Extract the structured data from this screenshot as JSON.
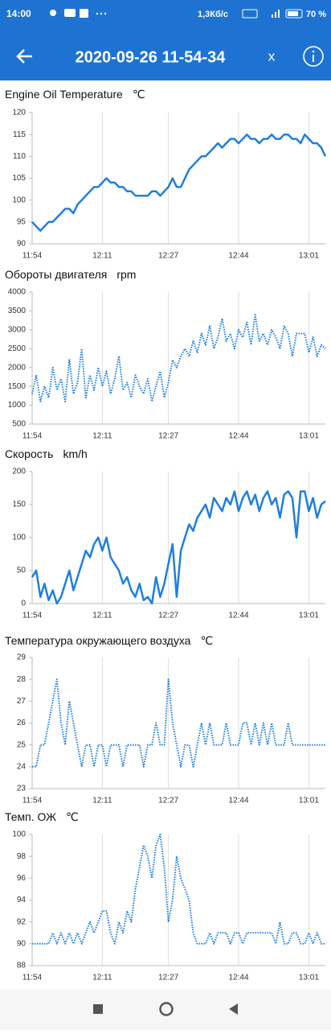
{
  "status_bar": {
    "time": "14:00",
    "speed": "1,3Кб/с",
    "battery": "70 %"
  },
  "header": {
    "title": "2020-09-26 11-54-34",
    "close": "x"
  },
  "chart_data": [
    {
      "type": "line",
      "title": "Engine Oil Temperature",
      "unit": "℃",
      "color": "#1e7fe0",
      "line_style": "solid",
      "x": [
        "11:54",
        "11:55",
        "11:56",
        "11:57",
        "11:58",
        "11:59",
        "12:00",
        "12:01",
        "12:02",
        "12:03",
        "12:04",
        "12:05",
        "12:06",
        "12:07",
        "12:08",
        "12:09",
        "12:10",
        "12:11",
        "12:12",
        "12:13",
        "12:14",
        "12:15",
        "12:16",
        "12:17",
        "12:18",
        "12:19",
        "12:20",
        "12:21",
        "12:22",
        "12:23",
        "12:24",
        "12:25",
        "12:26",
        "12:27",
        "12:28",
        "12:29",
        "12:30",
        "12:31",
        "12:32",
        "12:33",
        "12:34",
        "12:35",
        "12:36",
        "12:37",
        "12:38",
        "12:39",
        "12:40",
        "12:41",
        "12:42",
        "12:43",
        "12:44",
        "12:45",
        "12:46",
        "12:47",
        "12:48",
        "12:49",
        "12:50",
        "12:51",
        "12:52",
        "12:53",
        "12:54",
        "12:55",
        "12:56",
        "12:57",
        "12:58",
        "12:59",
        "13:00",
        "13:01",
        "13:02",
        "13:03",
        "13:04",
        "13:05"
      ],
      "values": [
        95,
        94,
        93,
        94,
        95,
        95,
        96,
        97,
        98,
        98,
        97,
        99,
        100,
        101,
        102,
        103,
        103,
        104,
        105,
        104,
        104,
        103,
        103,
        102,
        102,
        101,
        101,
        101,
        101,
        102,
        102,
        101,
        102,
        103,
        105,
        103,
        103,
        105,
        107,
        108,
        109,
        110,
        110,
        111,
        112,
        113,
        112,
        113,
        114,
        114,
        113,
        114,
        115,
        114,
        114,
        113,
        114,
        114,
        115,
        114,
        114,
        115,
        115,
        114,
        114,
        113,
        115,
        114,
        113,
        113,
        112,
        110
      ],
      "xlim": [
        "11:54",
        "13:05"
      ],
      "xticks": [
        "11:54",
        "12:11",
        "12:27",
        "12:44",
        "13:01"
      ],
      "ylim": [
        90,
        120
      ],
      "yticks": [
        90,
        95,
        100,
        105,
        110,
        115,
        120
      ]
    },
    {
      "type": "line",
      "title": "Обороты двигателя",
      "unit": "rpm",
      "color": "#1e7fe0",
      "line_style": "dotted",
      "x": [
        "11:54",
        "11:55",
        "11:56",
        "11:57",
        "11:58",
        "11:59",
        "12:00",
        "12:01",
        "12:02",
        "12:03",
        "12:04",
        "12:05",
        "12:06",
        "12:07",
        "12:08",
        "12:09",
        "12:10",
        "12:11",
        "12:12",
        "12:13",
        "12:14",
        "12:15",
        "12:16",
        "12:17",
        "12:18",
        "12:19",
        "12:20",
        "12:21",
        "12:22",
        "12:23",
        "12:24",
        "12:25",
        "12:26",
        "12:27",
        "12:28",
        "12:29",
        "12:30",
        "12:31",
        "12:32",
        "12:33",
        "12:34",
        "12:35",
        "12:36",
        "12:37",
        "12:38",
        "12:39",
        "12:40",
        "12:41",
        "12:42",
        "12:43",
        "12:44",
        "12:45",
        "12:46",
        "12:47",
        "12:48",
        "12:49",
        "12:50",
        "12:51",
        "12:52",
        "12:53",
        "12:54",
        "12:55",
        "12:56",
        "12:57",
        "12:58",
        "12:59",
        "13:00",
        "13:01",
        "13:02",
        "13:03",
        "13:04",
        "13:05"
      ],
      "values": [
        1300,
        1800,
        1100,
        1500,
        1200,
        2000,
        1400,
        1700,
        1100,
        2200,
        1300,
        1600,
        2500,
        1200,
        1800,
        1400,
        2000,
        1500,
        1900,
        1300,
        1700,
        2300,
        1400,
        1600,
        1200,
        1800,
        1500,
        1300,
        1700,
        1100,
        1500,
        1900,
        1200,
        1600,
        2200,
        2000,
        2300,
        2500,
        2300,
        2700,
        2400,
        2900,
        2600,
        3100,
        2500,
        2800,
        3300,
        2700,
        2900,
        2500,
        3000,
        2800,
        3200,
        2600,
        3400,
        2700,
        2900,
        2600,
        3000,
        2800,
        2500,
        3100,
        2900,
        2300,
        2900,
        2900,
        2900,
        2400,
        2800,
        2300,
        2600,
        2500
      ],
      "xlim": [
        "11:54",
        "13:05"
      ],
      "xticks": [
        "11:54",
        "12:11",
        "12:27",
        "12:44",
        "13:01"
      ],
      "ylim": [
        500,
        4000
      ],
      "yticks": [
        500,
        1000,
        1500,
        2000,
        2500,
        3000,
        3500,
        4000
      ]
    },
    {
      "type": "line",
      "title": "Скорость",
      "unit": "km/h",
      "color": "#1e7fe0",
      "line_style": "solid",
      "x": [
        "11:54",
        "11:55",
        "11:56",
        "11:57",
        "11:58",
        "11:59",
        "12:00",
        "12:01",
        "12:02",
        "12:03",
        "12:04",
        "12:05",
        "12:06",
        "12:07",
        "12:08",
        "12:09",
        "12:10",
        "12:11",
        "12:12",
        "12:13",
        "12:14",
        "12:15",
        "12:16",
        "12:17",
        "12:18",
        "12:19",
        "12:20",
        "12:21",
        "12:22",
        "12:23",
        "12:24",
        "12:25",
        "12:26",
        "12:27",
        "12:28",
        "12:29",
        "12:30",
        "12:31",
        "12:32",
        "12:33",
        "12:34",
        "12:35",
        "12:36",
        "12:37",
        "12:38",
        "12:39",
        "12:40",
        "12:41",
        "12:42",
        "12:43",
        "12:44",
        "12:45",
        "12:46",
        "12:47",
        "12:48",
        "12:49",
        "12:50",
        "12:51",
        "12:52",
        "12:53",
        "12:54",
        "12:55",
        "12:56",
        "12:57",
        "12:58",
        "12:59",
        "13:00",
        "13:01",
        "13:02",
        "13:03",
        "13:04",
        "13:05"
      ],
      "values": [
        40,
        50,
        10,
        30,
        5,
        20,
        0,
        10,
        30,
        50,
        20,
        40,
        60,
        80,
        70,
        90,
        100,
        80,
        100,
        70,
        60,
        50,
        30,
        40,
        20,
        10,
        30,
        5,
        10,
        0,
        40,
        10,
        30,
        60,
        90,
        10,
        80,
        100,
        120,
        110,
        130,
        140,
        150,
        130,
        160,
        150,
        140,
        160,
        150,
        170,
        140,
        160,
        170,
        150,
        165,
        140,
        160,
        170,
        150,
        160,
        130,
        165,
        170,
        160,
        100,
        170,
        170,
        140,
        160,
        130,
        150,
        155
      ],
      "xlim": [
        "11:54",
        "13:05"
      ],
      "xticks": [
        "11:54",
        "12:11",
        "12:27",
        "12:44",
        "13:01"
      ],
      "ylim": [
        0,
        200
      ],
      "yticks": [
        0,
        50,
        100,
        150,
        200
      ]
    },
    {
      "type": "line",
      "title": "Температура окружающего воздуха",
      "unit": "℃",
      "color": "#1e7fe0",
      "line_style": "dotted",
      "x": [
        "11:54",
        "11:55",
        "11:56",
        "11:57",
        "11:58",
        "11:59",
        "12:00",
        "12:01",
        "12:02",
        "12:03",
        "12:04",
        "12:05",
        "12:06",
        "12:07",
        "12:08",
        "12:09",
        "12:10",
        "12:11",
        "12:12",
        "12:13",
        "12:14",
        "12:15",
        "12:16",
        "12:17",
        "12:18",
        "12:19",
        "12:20",
        "12:21",
        "12:22",
        "12:23",
        "12:24",
        "12:25",
        "12:26",
        "12:27",
        "12:28",
        "12:29",
        "12:30",
        "12:31",
        "12:32",
        "12:33",
        "12:34",
        "12:35",
        "12:36",
        "12:37",
        "12:38",
        "12:39",
        "12:40",
        "12:41",
        "12:42",
        "12:43",
        "12:44",
        "12:45",
        "12:46",
        "12:47",
        "12:48",
        "12:49",
        "12:50",
        "12:51",
        "12:52",
        "12:53",
        "12:54",
        "12:55",
        "12:56",
        "12:57",
        "12:58",
        "12:59",
        "13:00",
        "13:01",
        "13:02",
        "13:03",
        "13:04",
        "13:05"
      ],
      "values": [
        24,
        24,
        25,
        25,
        26,
        27,
        28,
        26,
        25,
        27,
        26,
        25,
        24,
        25,
        25,
        24,
        25,
        25,
        24,
        25,
        25,
        25,
        24,
        25,
        25,
        25,
        25,
        24,
        25,
        25,
        26,
        25,
        25,
        28,
        26,
        25,
        24,
        25,
        25,
        24,
        25,
        26,
        25,
        26,
        25,
        25,
        25,
        26,
        25,
        25,
        25,
        26,
        26,
        25,
        26,
        25,
        26,
        25,
        26,
        25,
        25,
        25,
        26,
        25,
        25,
        25,
        25,
        25,
        25,
        25,
        25,
        25
      ],
      "xlim": [
        "11:54",
        "13:05"
      ],
      "xticks": [
        "11:54",
        "12:11",
        "12:27",
        "12:44",
        "13:01"
      ],
      "ylim": [
        23,
        29
      ],
      "yticks": [
        23,
        24,
        25,
        26,
        27,
        28,
        29
      ]
    },
    {
      "type": "line",
      "title": "Темп. ОЖ",
      "unit": "℃",
      "color": "#1e7fe0",
      "line_style": "dotted",
      "x": [
        "11:54",
        "11:55",
        "11:56",
        "11:57",
        "11:58",
        "11:59",
        "12:00",
        "12:01",
        "12:02",
        "12:03",
        "12:04",
        "12:05",
        "12:06",
        "12:07",
        "12:08",
        "12:09",
        "12:10",
        "12:11",
        "12:12",
        "12:13",
        "12:14",
        "12:15",
        "12:16",
        "12:17",
        "12:18",
        "12:19",
        "12:20",
        "12:21",
        "12:22",
        "12:23",
        "12:24",
        "12:25",
        "12:26",
        "12:27",
        "12:28",
        "12:29",
        "12:30",
        "12:31",
        "12:32",
        "12:33",
        "12:34",
        "12:35",
        "12:36",
        "12:37",
        "12:38",
        "12:39",
        "12:40",
        "12:41",
        "12:42",
        "12:43",
        "12:44",
        "12:45",
        "12:46",
        "12:47",
        "12:48",
        "12:49",
        "12:50",
        "12:51",
        "12:52",
        "12:53",
        "12:54",
        "12:55",
        "12:56",
        "12:57",
        "12:58",
        "12:59",
        "13:00",
        "13:01",
        "13:02",
        "13:03",
        "13:04",
        "13:05"
      ],
      "values": [
        90,
        90,
        90,
        90,
        90,
        91,
        90,
        91,
        90,
        91,
        90,
        91,
        90,
        91,
        92,
        91,
        92,
        93,
        93,
        91,
        90,
        92,
        91,
        93,
        92,
        95,
        97,
        99,
        98,
        96,
        99,
        100,
        97,
        92,
        94,
        98,
        96,
        95,
        94,
        91,
        90,
        90,
        90,
        91,
        90,
        91,
        91,
        91,
        90,
        91,
        91,
        90,
        91,
        91,
        91,
        91,
        91,
        91,
        91,
        90,
        92,
        90,
        90,
        91,
        91,
        90,
        90,
        91,
        90,
        91,
        90,
        90
      ],
      "xlim": [
        "11:54",
        "13:05"
      ],
      "xticks": [
        "11:54",
        "12:11",
        "12:27",
        "12:44",
        "13:01"
      ],
      "ylim": [
        88,
        100
      ],
      "yticks": [
        88,
        90,
        92,
        94,
        96,
        98,
        100
      ]
    }
  ]
}
